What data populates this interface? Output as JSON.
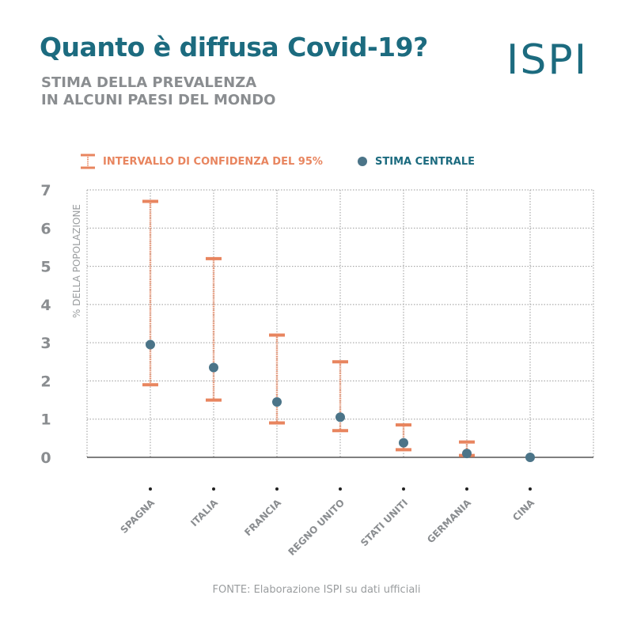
{
  "header": {
    "title": "Quanto è diffusa Covid-19?",
    "subtitle_line1": "STIMA DELLA PREVALENZA",
    "subtitle_line2": "IN ALCUNI PAESI DEL MONDO",
    "logo_text": "ISPI"
  },
  "legend": {
    "ci_label": "INTERVALLO DI CONFIDENZA DEL 95%",
    "central_label": "STIMA CENTRALE"
  },
  "source": "FONTE: Elaborazione ISPI su dati ufficiali",
  "colors": {
    "title": "#1c6b7f",
    "subtitle": "#8a8d90",
    "interval": "#e8855f",
    "point": "#4b7488",
    "grid": "#9a9a9a"
  },
  "chart_data": {
    "type": "scatter",
    "title": "Quanto è diffusa Covid-19?",
    "subtitle": "STIMA DELLA PREVALENZA IN ALCUNI PAESI DEL MONDO",
    "xlabel": "",
    "ylabel": "% DELLA POPOLAZIONE",
    "ylim": [
      0,
      7
    ],
    "yticks": [
      "0",
      "1",
      "2",
      "3",
      "4",
      "5",
      "6",
      "7"
    ],
    "grid": true,
    "legend_position": "top",
    "categories": [
      "SPAGNA",
      "ITALIA",
      "FRANCIA",
      "REGNO UNITO",
      "STATI UNITI",
      "GERMANIA",
      "CINA"
    ],
    "series": [
      {
        "name": "STIMA CENTRALE",
        "values": [
          2.95,
          2.35,
          1.45,
          1.05,
          0.38,
          0.1,
          0.0
        ]
      },
      {
        "name": "INTERVALLO DI CONFIDENZA DEL 95%",
        "lower": [
          1.9,
          1.5,
          0.9,
          0.7,
          0.2,
          0.05,
          null
        ],
        "upper": [
          6.7,
          5.2,
          3.2,
          2.5,
          0.85,
          0.4,
          null
        ]
      }
    ]
  }
}
